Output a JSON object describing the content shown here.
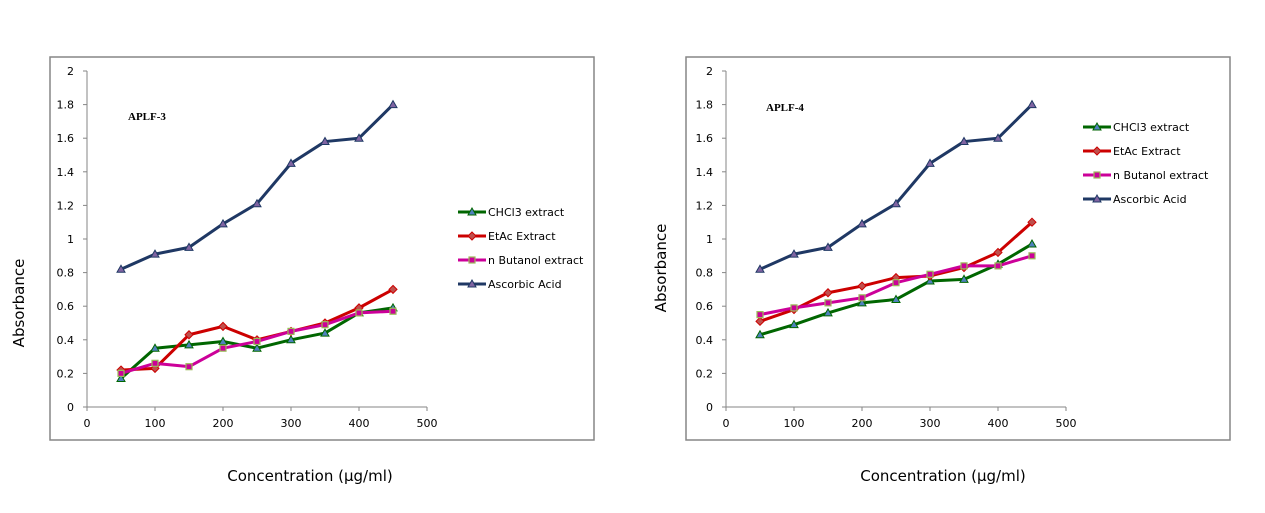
{
  "chart_data": [
    {
      "type": "line",
      "title": "",
      "annotation": "APLF-3",
      "xlabel": "Concentration (µg/ml)",
      "ylabel": "Absorbance",
      "xlim": [
        0,
        500
      ],
      "ylim": [
        0,
        2
      ],
      "xticks": [
        "0",
        "100",
        "200",
        "300",
        "400",
        "500"
      ],
      "yticks": [
        "0",
        "0.2",
        "0.4",
        "0.6",
        "0.8",
        "1",
        "1.2",
        "1.4",
        "1.6",
        "1.8",
        "2"
      ],
      "grid": false,
      "legend_position": "right",
      "x": [
        50,
        100,
        150,
        200,
        250,
        300,
        350,
        400,
        450
      ],
      "series": [
        {
          "name": "CHCl3 extract",
          "color": "#006600",
          "marker": "triangle",
          "values": [
            0.17,
            0.35,
            0.37,
            0.39,
            0.35,
            0.4,
            0.44,
            0.56,
            0.59
          ]
        },
        {
          "name": "EtAc Extract",
          "color": "#cc0000",
          "marker": "diamond",
          "values": [
            0.22,
            0.23,
            0.43,
            0.48,
            0.4,
            0.45,
            0.5,
            0.59,
            0.7
          ]
        },
        {
          "name": "n Butanol extract",
          "color": "#cc0099",
          "marker": "square",
          "values": [
            0.2,
            0.26,
            0.24,
            0.35,
            0.39,
            0.45,
            0.49,
            0.56,
            0.57
          ]
        },
        {
          "name": "Ascorbic Acid",
          "color": "#1f3864",
          "marker": "triangle",
          "values": [
            0.82,
            0.91,
            0.95,
            1.09,
            1.21,
            1.45,
            1.58,
            1.6,
            1.8
          ]
        }
      ]
    },
    {
      "type": "line",
      "title": "",
      "annotation": "APLF-4",
      "xlabel": "Concentration (µg/ml)",
      "ylabel": "Absorbance",
      "xlim": [
        0,
        500
      ],
      "ylim": [
        0,
        2
      ],
      "xticks": [
        "0",
        "100",
        "200",
        "300",
        "400",
        "500"
      ],
      "yticks": [
        "0",
        "0.2",
        "0.4",
        "0.6",
        "0.8",
        "1",
        "1.2",
        "1.4",
        "1.6",
        "1.8",
        "2"
      ],
      "grid": false,
      "legend_position": "top-right",
      "x": [
        50,
        100,
        150,
        200,
        250,
        300,
        350,
        400,
        450
      ],
      "series": [
        {
          "name": "CHCl3 extract",
          "color": "#006600",
          "marker": "triangle",
          "values": [
            0.43,
            0.49,
            0.56,
            0.62,
            0.64,
            0.75,
            0.76,
            0.85,
            0.97
          ]
        },
        {
          "name": "EtAc Extract",
          "color": "#cc0000",
          "marker": "diamond",
          "values": [
            0.51,
            0.58,
            0.68,
            0.72,
            0.77,
            0.78,
            0.83,
            0.92,
            1.1
          ]
        },
        {
          "name": "n Butanol extract",
          "color": "#cc0099",
          "marker": "square",
          "values": [
            0.55,
            0.59,
            0.62,
            0.65,
            0.74,
            0.79,
            0.84,
            0.84,
            0.9
          ]
        },
        {
          "name": "Ascorbic Acid",
          "color": "#1f3864",
          "marker": "triangle",
          "values": [
            0.82,
            0.91,
            0.95,
            1.09,
            1.21,
            1.45,
            1.58,
            1.6,
            1.8
          ]
        }
      ]
    }
  ]
}
